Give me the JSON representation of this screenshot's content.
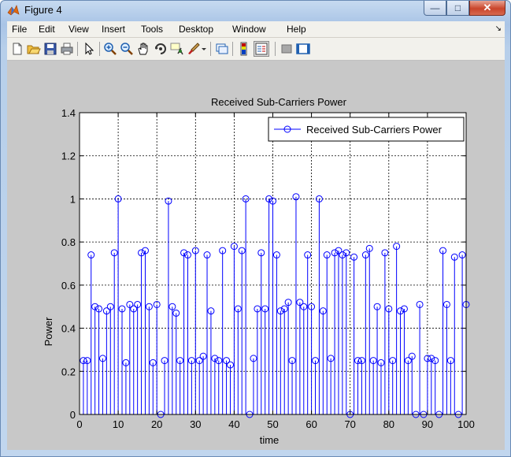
{
  "window": {
    "title": "Figure 4"
  },
  "menu": [
    "File",
    "Edit",
    "View",
    "Insert",
    "Tools",
    "Desktop",
    "Window",
    "Help"
  ],
  "toolbar_icons": [
    "new-figure-icon",
    "open-file-icon",
    "save-icon",
    "print-icon",
    "edit-plot-arrow-icon",
    "zoom-in-icon",
    "zoom-out-icon",
    "pan-hand-icon",
    "rotate-3d-icon",
    "data-cursor-icon",
    "brush-icon",
    "brush-dropdown-icon",
    "link-plot-icon",
    "insert-colorbar-icon",
    "insert-legend-icon",
    "hide-plot-tools-icon",
    "show-plot-tools-icon"
  ],
  "colors": {
    "series": "#0000ff",
    "axes_bg": "#ffffff",
    "figure_bg": "#c8c8c8"
  },
  "chart_data": {
    "type": "stem",
    "title": "Received Sub-Carriers Power",
    "xlabel": "time",
    "ylabel": "Power",
    "xlim": [
      0,
      100
    ],
    "ylim": [
      0,
      1.4
    ],
    "xticks": [
      "0",
      "10",
      "20",
      "30",
      "40",
      "50",
      "60",
      "70",
      "80",
      "90",
      "100"
    ],
    "yticks": [
      "0",
      "0.2",
      "0.4",
      "0.6",
      "0.8",
      "1",
      "1.2",
      "1.4"
    ],
    "grid": true,
    "legend": {
      "position": "top-right",
      "entries": [
        "Received Sub-Carriers Power"
      ]
    },
    "series": [
      {
        "name": "Received Sub-Carriers Power",
        "marker": "circle",
        "x": [
          1,
          2,
          3,
          4,
          5,
          6,
          7,
          8,
          9,
          10,
          11,
          12,
          13,
          14,
          15,
          16,
          17,
          18,
          19,
          20,
          21,
          22,
          23,
          24,
          25,
          26,
          27,
          28,
          29,
          30,
          31,
          32,
          33,
          34,
          35,
          36,
          37,
          38,
          39,
          40,
          41,
          42,
          43,
          44,
          45,
          46,
          47,
          48,
          49,
          50,
          51,
          52,
          53,
          54,
          55,
          56,
          57,
          58,
          59,
          60,
          61,
          62,
          63,
          64,
          65,
          66,
          67,
          68,
          69,
          70,
          71,
          72,
          73,
          74,
          75,
          76,
          77,
          78,
          79,
          80,
          81,
          82,
          83,
          84,
          85,
          86,
          87,
          88,
          89,
          90,
          91,
          92,
          93,
          94,
          95,
          96,
          97,
          98,
          99,
          100
        ],
        "values": [
          0.25,
          0.25,
          0.74,
          0.5,
          0.49,
          0.26,
          0.48,
          0.5,
          0.75,
          1.0,
          0.49,
          0.24,
          0.51,
          0.49,
          0.51,
          0.75,
          0.76,
          0.5,
          0.24,
          0.51,
          0.0,
          0.25,
          0.99,
          0.5,
          0.47,
          0.25,
          0.75,
          0.74,
          0.25,
          0.76,
          0.25,
          0.27,
          0.74,
          0.48,
          0.26,
          0.25,
          0.76,
          0.25,
          0.23,
          0.78,
          0.49,
          0.76,
          1.0,
          0.0,
          0.26,
          0.49,
          0.75,
          0.49,
          1.0,
          0.99,
          0.74,
          0.48,
          0.49,
          0.52,
          0.25,
          1.01,
          0.52,
          0.5,
          0.74,
          0.5,
          0.25,
          1.0,
          0.48,
          0.74,
          0.26,
          0.75,
          0.76,
          0.74,
          0.75,
          0.0,
          0.73,
          0.25,
          0.25,
          0.74,
          0.77,
          0.25,
          0.5,
          0.24,
          0.75,
          0.49,
          0.25,
          0.78,
          0.48,
          0.49,
          0.25,
          0.27,
          0.0,
          0.51,
          0.0,
          0.26,
          0.26,
          0.25,
          0.0,
          0.76,
          0.51,
          0.25,
          0.73,
          0.0,
          0.74,
          0.51
        ]
      }
    ]
  }
}
